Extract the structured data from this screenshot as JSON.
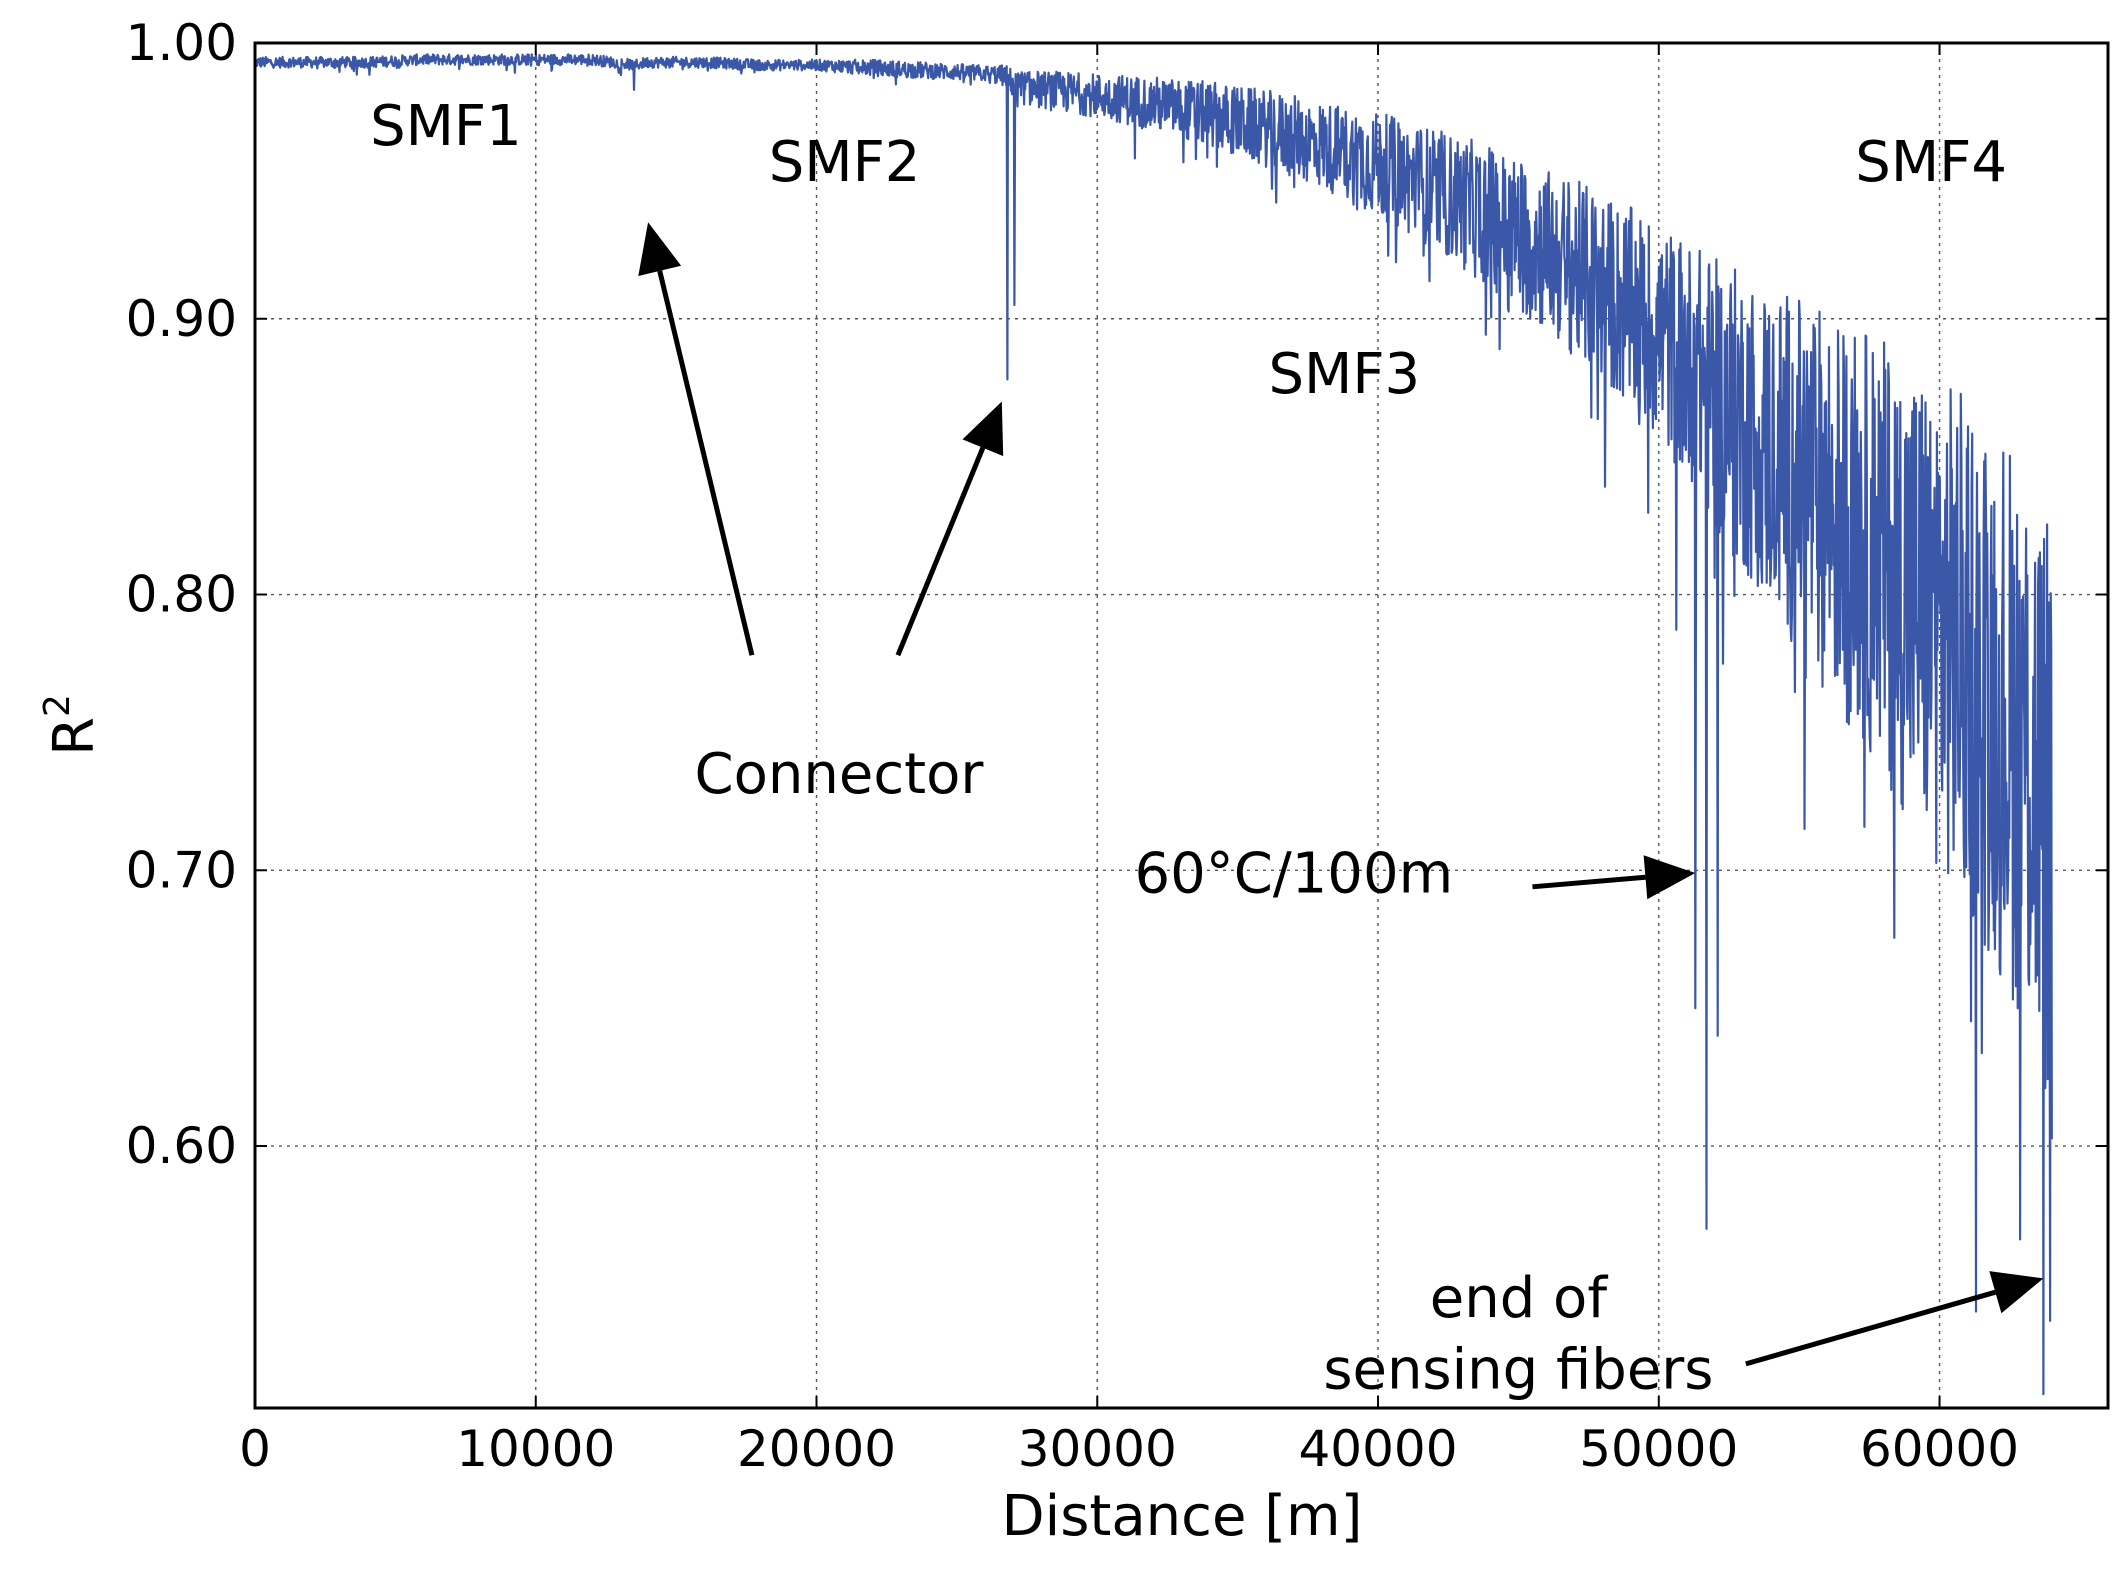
{
  "chart_data": {
    "type": "line",
    "title": "",
    "xlabel": "Distance [m]",
    "ylabel_base": "R",
    "ylabel_superscript": "2",
    "xlim": [
      0,
      66000
    ],
    "ylim": [
      0.505,
      1.0
    ],
    "x_ticks": [
      0,
      10000,
      20000,
      30000,
      40000,
      50000,
      60000
    ],
    "x_tick_labels": [
      "0",
      "10000",
      "20000",
      "30000",
      "40000",
      "50000",
      "60000"
    ],
    "y_ticks": [
      0.6,
      0.7,
      0.8,
      0.9,
      1.0
    ],
    "y_tick_labels": [
      "0.60",
      "0.70",
      "0.80",
      "0.90",
      "1.00"
    ],
    "grid": true,
    "series": [
      {
        "name": "R2",
        "color": "#3a57a8",
        "x_start": 0,
        "x_end": 64000,
        "x": [
          0,
          2000,
          4000,
          6000,
          8000,
          10000,
          12000,
          13500,
          14000,
          16000,
          18000,
          20000,
          22000,
          24000,
          26000,
          26800,
          27000,
          27200,
          28000,
          30000,
          32000,
          34000,
          36000,
          38000,
          40000,
          42000,
          44000,
          46000,
          48000,
          50000,
          51500,
          52000,
          52500,
          54000,
          56000,
          58000,
          59000,
          60000,
          61000,
          62000,
          63000,
          63500,
          64000
        ],
        "y": [
          0.993,
          0.993,
          0.993,
          0.994,
          0.994,
          0.994,
          0.994,
          0.992,
          0.993,
          0.993,
          0.992,
          0.992,
          0.991,
          0.99,
          0.989,
          0.988,
          0.985,
          0.984,
          0.983,
          0.981,
          0.978,
          0.974,
          0.969,
          0.963,
          0.956,
          0.947,
          0.937,
          0.925,
          0.911,
          0.895,
          0.88,
          0.872,
          0.868,
          0.853,
          0.834,
          0.813,
          0.801,
          0.79,
          0.778,
          0.764,
          0.748,
          0.735,
          0.72
        ],
        "noise": [
          0.002,
          0.002,
          0.002,
          0.002,
          0.002,
          0.002,
          0.002,
          0.002,
          0.002,
          0.002,
          0.002,
          0.002,
          0.003,
          0.003,
          0.003,
          0.004,
          0.005,
          0.006,
          0.007,
          0.008,
          0.01,
          0.012,
          0.014,
          0.016,
          0.019,
          0.022,
          0.026,
          0.03,
          0.035,
          0.04,
          0.046,
          0.05,
          0.052,
          0.06,
          0.07,
          0.08,
          0.085,
          0.09,
          0.095,
          0.1,
          0.105,
          0.11,
          0.115
        ],
        "dips": [
          {
            "x": 13500,
            "y": 0.983
          },
          {
            "x": 26800,
            "y": 0.878
          },
          {
            "x": 27050,
            "y": 0.905
          },
          {
            "x": 51300,
            "y": 0.65
          },
          {
            "x": 51700,
            "y": 0.57
          },
          {
            "x": 52100,
            "y": 0.64
          },
          {
            "x": 61300,
            "y": 0.54
          },
          {
            "x": 63700,
            "y": 0.51
          }
        ]
      }
    ],
    "annotations": [
      {
        "id": "smf1",
        "text": "SMF1",
        "x": 6800,
        "y": 0.963
      },
      {
        "id": "smf2",
        "text": "SMF2",
        "x": 21000,
        "y": 0.95
      },
      {
        "id": "smf3",
        "text": "SMF3",
        "x": 38800,
        "y": 0.873
      },
      {
        "id": "smf4",
        "text": "SMF4",
        "x": 59700,
        "y": 0.95
      },
      {
        "id": "connector",
        "text": "Connector",
        "x": 20800,
        "y": 0.728
      },
      {
        "id": "heat",
        "text": "60°C/100m",
        "x": 37000,
        "y": 0.692
      },
      {
        "id": "end1",
        "text": "end of",
        "x": 45000,
        "y": 0.538
      },
      {
        "id": "end2",
        "text": "sensing fibers",
        "x": 45000,
        "y": 0.512
      }
    ],
    "arrows": [
      {
        "from": [
          17700,
          0.778
        ],
        "to": [
          14000,
          0.935
        ]
      },
      {
        "from": [
          22900,
          0.778
        ],
        "to": [
          26600,
          0.87
        ]
      },
      {
        "from": [
          45500,
          0.694
        ],
        "to": [
          51300,
          0.699
        ]
      },
      {
        "from": [
          53100,
          0.521
        ],
        "to": [
          63700,
          0.552
        ]
      }
    ]
  }
}
